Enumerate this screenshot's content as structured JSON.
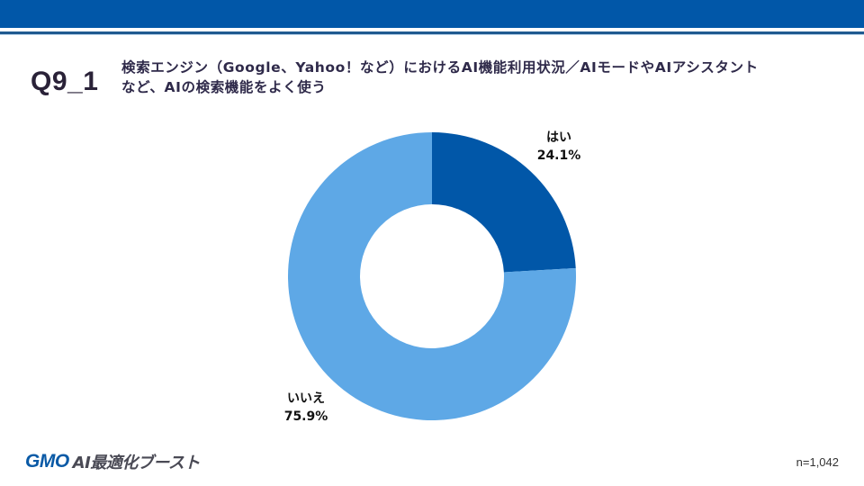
{
  "header": {
    "question_number": "Q9_1",
    "question_title_line1": "検索エンジン（Google、Yahoo！など）におけるAI機能利用状況／AIモードやAIアシスタント",
    "question_title_line2": "など、AIの検索機能をよく使う"
  },
  "footer": {
    "logo_brand": "GMO",
    "logo_product": "AI最適化ブースト",
    "sample_size": "n=1,042"
  },
  "colors": {
    "header_bar": "#0157a8",
    "yes_slice": "#0157a8",
    "no_slice": "#5ea8e6"
  },
  "labels": {
    "yes_name": "はい",
    "yes_value": "24.1%",
    "no_name": "いいえ",
    "no_value": "75.9%"
  },
  "chart_data": {
    "type": "pie",
    "subtype": "donut",
    "title": "検索エンジン（Google、Yahoo！など）におけるAI機能利用状況／AIモードやAIアシスタントなど、AIの検索機能をよく使う",
    "categories": [
      "はい",
      "いいえ"
    ],
    "values": [
      24.1,
      75.9
    ],
    "unit": "%",
    "colors": [
      "#0157a8",
      "#5ea8e6"
    ],
    "start_angle": "12 o'clock, clockwise",
    "sample_size": 1042,
    "legend": "none (direct labels)"
  }
}
